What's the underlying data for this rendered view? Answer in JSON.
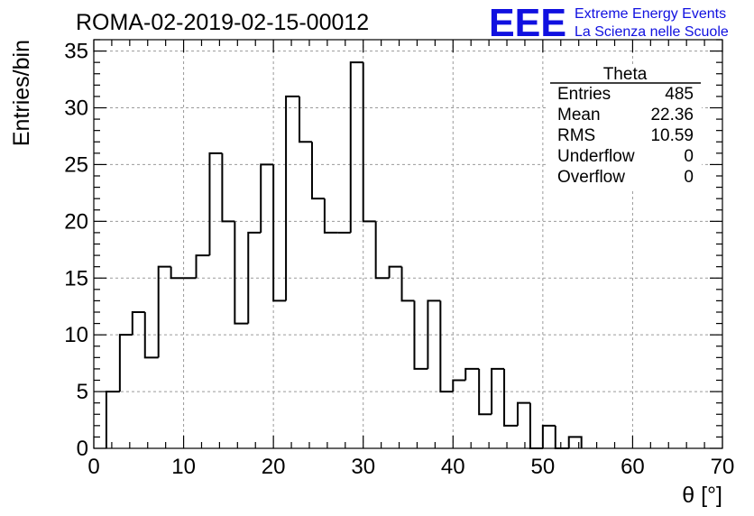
{
  "chart_data": {
    "type": "bar",
    "title": "ROMA-02-2019-02-15-00012",
    "xlabel": "θ [°]",
    "ylabel": "Entries/bin",
    "xlim": [
      0,
      70
    ],
    "ylim": [
      0,
      36
    ],
    "xticks": [
      "0",
      "10",
      "20",
      "30",
      "40",
      "50",
      "60",
      "70"
    ],
    "yticks": [
      "0",
      "5",
      "10",
      "15",
      "20",
      "25",
      "30",
      "35"
    ],
    "grid": true,
    "histogram": true,
    "bin_edges": [
      1.4,
      2.9,
      4.3,
      5.7,
      7.2,
      8.6,
      10.0,
      11.4,
      12.9,
      14.3,
      15.7,
      17.2,
      18.6,
      20.0,
      21.4,
      22.9,
      24.3,
      25.7,
      27.2,
      28.6,
      30.0,
      31.4,
      32.9,
      34.3,
      35.7,
      37.2,
      38.6,
      40.0,
      41.4,
      42.9,
      44.3,
      45.7,
      47.2,
      48.6,
      50.0,
      51.4,
      52.9,
      54.3
    ],
    "values": [
      5,
      10,
      12,
      8,
      16,
      15,
      15,
      17,
      26,
      20,
      11,
      19,
      25,
      13,
      31,
      27,
      22,
      19,
      19,
      34,
      20,
      15,
      16,
      13,
      7,
      13,
      5,
      6,
      7,
      3,
      7,
      2,
      4,
      0,
      2,
      0,
      1
    ],
    "line_color": "#000000"
  },
  "stats_box": {
    "name": "Theta",
    "rows": [
      {
        "label": "Entries",
        "value": "485"
      },
      {
        "label": "Mean",
        "value": "22.36"
      },
      {
        "label": "RMS",
        "value": "10.59"
      },
      {
        "label": "Underflow",
        "value": "0"
      },
      {
        "label": "Overflow",
        "value": "0"
      }
    ]
  },
  "logo": {
    "mark": "EEE",
    "line1": "Extreme Energy Events",
    "line2": "La Scienza nelle Scuole",
    "color": "#1010e0"
  }
}
